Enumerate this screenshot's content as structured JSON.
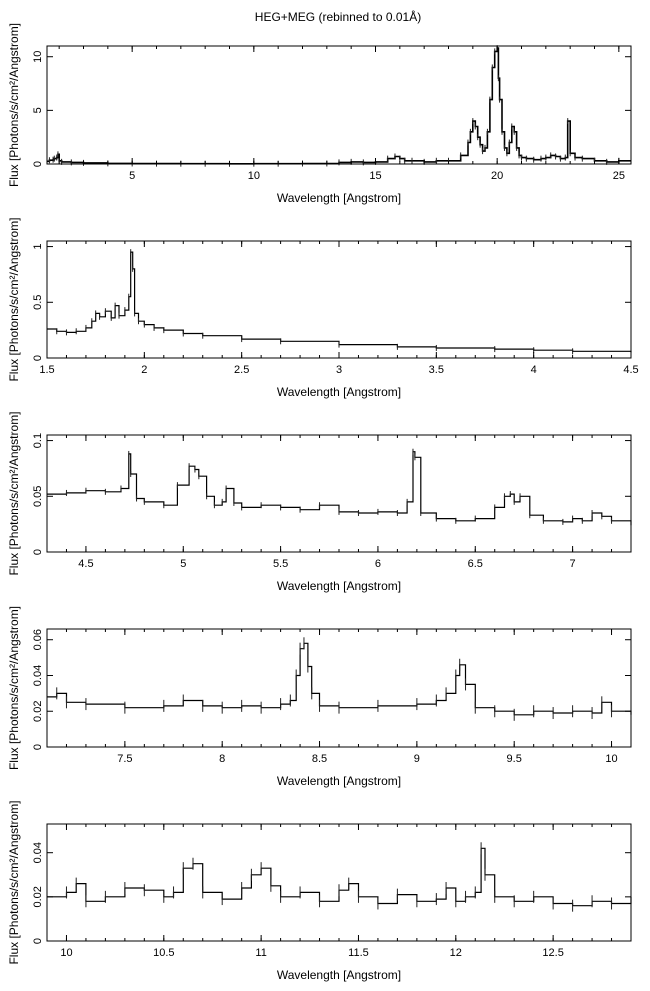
{
  "figure": {
    "title": "HEG+MEG (rebinned to 0.01Å)"
  },
  "chart_data": [
    {
      "type": "line",
      "xlabel": "Wavelength [Angstrom]",
      "ylabel": "Flux [Photons/s/cm²/Angstrom]",
      "xlim": [
        1.5,
        25.5
      ],
      "ylim": [
        0,
        11
      ],
      "xticks": [
        5,
        10,
        15,
        20,
        25
      ],
      "yticks": [
        0,
        5,
        10
      ],
      "series": [
        {
          "x": [
            1.5,
            1.6,
            1.75,
            1.8,
            1.9,
            1.95,
            2.0,
            2.1,
            2.5,
            3,
            4,
            5,
            6,
            7,
            8,
            9,
            10,
            11,
            12,
            13,
            13.5,
            14,
            14.5,
            15,
            15.5,
            15.8,
            16.0,
            16.2,
            16.5,
            17,
            17.5,
            18,
            18.5,
            18.8,
            18.9,
            19.0,
            19.1,
            19.2,
            19.3,
            19.4,
            19.5,
            19.6,
            19.7,
            19.8,
            19.9,
            20.0,
            20.05,
            20.1,
            20.2,
            20.3,
            20.4,
            20.5,
            20.6,
            20.7,
            20.8,
            20.9,
            21.0,
            21.2,
            21.5,
            21.8,
            22.0,
            22.2,
            22.4,
            22.6,
            22.8,
            22.9,
            23.0,
            23.2,
            23.5,
            24,
            24.5,
            25,
            25.5
          ],
          "y": [
            0.25,
            0.35,
            0.4,
            0.5,
            0.6,
            0.9,
            0.3,
            0.2,
            0.15,
            0.1,
            0.06,
            0.05,
            0.04,
            0.03,
            0.03,
            0.02,
            0.03,
            0.03,
            0.05,
            0.05,
            0.15,
            0.2,
            0.15,
            0.2,
            0.5,
            0.7,
            0.5,
            0.3,
            0.3,
            0.2,
            0.3,
            0.3,
            0.8,
            2.0,
            3.0,
            4.0,
            3.5,
            2.5,
            1.8,
            1.2,
            1.5,
            3.0,
            6.0,
            9.0,
            10.5,
            10.8,
            8.0,
            6.0,
            3.0,
            1.5,
            1.0,
            2.0,
            3.5,
            3.0,
            1.5,
            0.8,
            0.6,
            0.5,
            0.4,
            0.5,
            0.6,
            0.8,
            0.7,
            0.5,
            0.6,
            4.0,
            1.0,
            0.6,
            0.5,
            0.3,
            0.2,
            0.3,
            0.3
          ]
        }
      ]
    },
    {
      "type": "line",
      "xlabel": "Wavelength [Angstrom]",
      "ylabel": "Flux [Photons/s/cm²/Angstrom]",
      "xlim": [
        1.5,
        4.5
      ],
      "ylim": [
        0,
        1.05
      ],
      "xticks": [
        1.5,
        2,
        2.5,
        3,
        3.5,
        4,
        4.5
      ],
      "yticks": [
        0,
        0.5,
        1
      ],
      "series": [
        {
          "x": [
            1.5,
            1.55,
            1.6,
            1.65,
            1.7,
            1.73,
            1.75,
            1.77,
            1.8,
            1.83,
            1.85,
            1.87,
            1.9,
            1.92,
            1.93,
            1.94,
            1.95,
            1.97,
            2.0,
            2.05,
            2.1,
            2.2,
            2.3,
            2.5,
            2.7,
            3.0,
            3.3,
            3.5,
            3.8,
            4.0,
            4.2,
            4.5
          ],
          "y": [
            0.26,
            0.24,
            0.23,
            0.24,
            0.27,
            0.33,
            0.4,
            0.37,
            0.42,
            0.36,
            0.47,
            0.38,
            0.43,
            0.55,
            0.95,
            0.8,
            0.4,
            0.33,
            0.3,
            0.27,
            0.25,
            0.22,
            0.2,
            0.17,
            0.15,
            0.12,
            0.1,
            0.09,
            0.08,
            0.07,
            0.06,
            0.05
          ]
        }
      ]
    },
    {
      "type": "line",
      "xlabel": "Wavelength [Angstrom]",
      "ylabel": "Flux [Photons/s/cm²/Angstrom]",
      "xlim": [
        4.3,
        7.3
      ],
      "ylim": [
        0,
        0.105
      ],
      "xticks": [
        4.5,
        5,
        5.5,
        6,
        6.5,
        7
      ],
      "yticks": [
        0,
        0.05,
        0.1
      ],
      "series": [
        {
          "x": [
            4.3,
            4.4,
            4.5,
            4.6,
            4.68,
            4.72,
            4.73,
            4.76,
            4.8,
            4.9,
            4.97,
            5.03,
            5.06,
            5.08,
            5.12,
            5.16,
            5.2,
            5.22,
            5.26,
            5.3,
            5.4,
            5.5,
            5.6,
            5.7,
            5.8,
            5.9,
            6.0,
            6.1,
            6.15,
            6.18,
            6.19,
            6.22,
            6.3,
            6.4,
            6.5,
            6.6,
            6.65,
            6.68,
            6.7,
            6.73,
            6.78,
            6.85,
            6.95,
            7.0,
            7.05,
            7.1,
            7.15,
            7.2,
            7.3
          ],
          "y": [
            0.052,
            0.053,
            0.055,
            0.054,
            0.057,
            0.088,
            0.07,
            0.048,
            0.045,
            0.042,
            0.06,
            0.077,
            0.074,
            0.068,
            0.05,
            0.042,
            0.045,
            0.057,
            0.044,
            0.04,
            0.042,
            0.04,
            0.038,
            0.042,
            0.036,
            0.035,
            0.036,
            0.035,
            0.045,
            0.09,
            0.085,
            0.035,
            0.03,
            0.028,
            0.03,
            0.04,
            0.05,
            0.052,
            0.045,
            0.05,
            0.033,
            0.028,
            0.027,
            0.03,
            0.028,
            0.035,
            0.032,
            0.028,
            0.024
          ]
        }
      ]
    },
    {
      "type": "line",
      "xlabel": "Wavelength [Angstrom]",
      "ylabel": "Flux [Photons/s/cm²/Angstrom]",
      "xlim": [
        7.1,
        10.1
      ],
      "ylim": [
        0,
        0.066
      ],
      "xticks": [
        7.5,
        8,
        8.5,
        9,
        9.5,
        10
      ],
      "yticks": [
        0,
        0.02,
        0.04,
        0.06
      ],
      "series": [
        {
          "x": [
            7.1,
            7.15,
            7.2,
            7.3,
            7.5,
            7.7,
            7.8,
            7.9,
            8.0,
            8.1,
            8.2,
            8.3,
            8.35,
            8.38,
            8.4,
            8.42,
            8.44,
            8.46,
            8.5,
            8.6,
            8.8,
            9.0,
            9.1,
            9.15,
            9.2,
            9.22,
            9.25,
            9.3,
            9.4,
            9.5,
            9.6,
            9.7,
            9.8,
            9.9,
            9.95,
            10.0,
            10.1
          ],
          "y": [
            0.028,
            0.03,
            0.025,
            0.024,
            0.022,
            0.023,
            0.026,
            0.023,
            0.022,
            0.023,
            0.022,
            0.024,
            0.026,
            0.04,
            0.055,
            0.058,
            0.045,
            0.03,
            0.023,
            0.022,
            0.023,
            0.024,
            0.026,
            0.03,
            0.04,
            0.046,
            0.035,
            0.022,
            0.02,
            0.018,
            0.02,
            0.019,
            0.02,
            0.019,
            0.025,
            0.02,
            0.018
          ]
        }
      ]
    },
    {
      "type": "line",
      "xlabel": "Wavelength [Angstrom]",
      "ylabel": "Flux [Photons/s/cm²/Angstrom]",
      "xlim": [
        9.9,
        12.9
      ],
      "ylim": [
        0,
        0.053
      ],
      "xticks": [
        10,
        10.5,
        11,
        11.5,
        12,
        12.5
      ],
      "yticks": [
        0,
        0.02,
        0.04
      ],
      "series": [
        {
          "x": [
            9.9,
            10.0,
            10.05,
            10.1,
            10.2,
            10.3,
            10.4,
            10.5,
            10.55,
            10.6,
            10.65,
            10.7,
            10.8,
            10.9,
            10.95,
            11.0,
            11.05,
            11.1,
            11.2,
            11.3,
            11.4,
            11.45,
            11.5,
            11.6,
            11.7,
            11.8,
            11.9,
            11.95,
            12.0,
            12.05,
            12.1,
            12.13,
            12.15,
            12.2,
            12.3,
            12.4,
            12.5,
            12.6,
            12.7,
            12.8,
            12.9
          ],
          "y": [
            0.02,
            0.022,
            0.026,
            0.018,
            0.02,
            0.024,
            0.023,
            0.02,
            0.022,
            0.033,
            0.035,
            0.022,
            0.019,
            0.024,
            0.03,
            0.033,
            0.025,
            0.02,
            0.022,
            0.018,
            0.023,
            0.026,
            0.02,
            0.017,
            0.021,
            0.018,
            0.019,
            0.024,
            0.018,
            0.02,
            0.022,
            0.042,
            0.03,
            0.02,
            0.018,
            0.02,
            0.017,
            0.016,
            0.018,
            0.017,
            0.02
          ]
        }
      ]
    }
  ]
}
